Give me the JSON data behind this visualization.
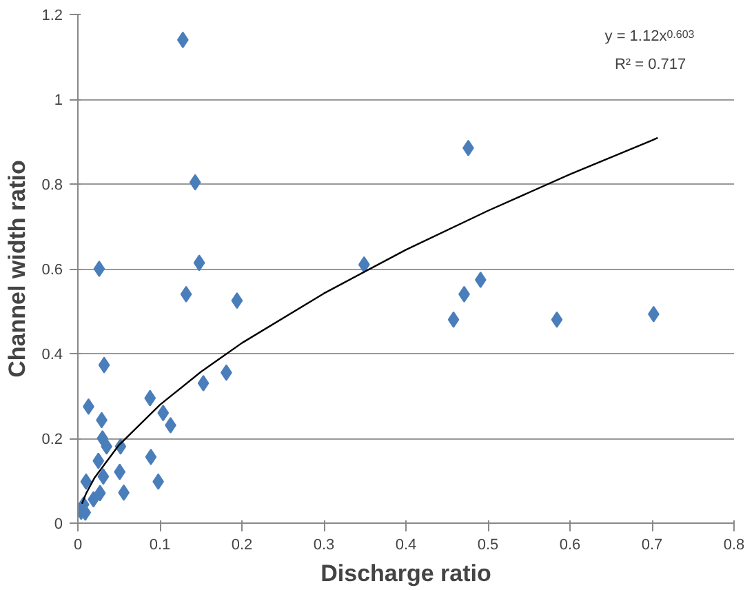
{
  "chart_data": {
    "type": "scatter",
    "xlabel": "Discharge ratio",
    "ylabel": "Channel width ratio",
    "xlim": [
      0,
      0.8
    ],
    "ylim": [
      0,
      1.2
    ],
    "xticks": [
      0,
      0.1,
      0.2,
      0.3,
      0.4,
      0.5,
      0.6,
      0.7,
      0.8
    ],
    "yticks": [
      0,
      0.2,
      0.4,
      0.6,
      0.8,
      1,
      1.2
    ],
    "grid": "y",
    "marker": "diamond",
    "annotations": [
      "y = 1.12x$^{0.603}$",
      "R² = 0.717"
    ],
    "series": [
      {
        "color": "#4a7ebb",
        "x": [
          0.128,
          0.476,
          0.143,
          0.026,
          0.148,
          0.349,
          0.132,
          0.194,
          0.471,
          0.491,
          0.458,
          0.584,
          0.702,
          0.032,
          0.153,
          0.181,
          0.013,
          0.088,
          0.029,
          0.104,
          0.113,
          0.03,
          0.035,
          0.052,
          0.025,
          0.089,
          0.051,
          0.031,
          0.01,
          0.098,
          0.056,
          0.027,
          0.019,
          0.007,
          0.004,
          0.009
        ],
        "values": [
          1.14,
          0.885,
          0.804,
          0.6,
          0.614,
          0.61,
          0.54,
          0.525,
          0.54,
          0.574,
          0.48,
          0.48,
          0.493,
          0.373,
          0.33,
          0.355,
          0.275,
          0.295,
          0.243,
          0.26,
          0.231,
          0.2,
          0.181,
          0.181,
          0.147,
          0.156,
          0.121,
          0.11,
          0.098,
          0.098,
          0.072,
          0.071,
          0.056,
          0.044,
          0.027,
          0.025
        ]
      },
      {
        "type": "line",
        "color": "#000000",
        "marker": "none",
        "x": [
          0.005,
          0.01,
          0.02,
          0.05,
          0.1,
          0.15,
          0.2,
          0.3,
          0.4,
          0.5,
          0.6,
          0.7,
          0.707
        ],
        "values": [
          0.046,
          0.07,
          0.106,
          0.184,
          0.279,
          0.357,
          0.425,
          0.542,
          0.645,
          0.737,
          0.823,
          0.903,
          0.909
        ]
      }
    ]
  }
}
